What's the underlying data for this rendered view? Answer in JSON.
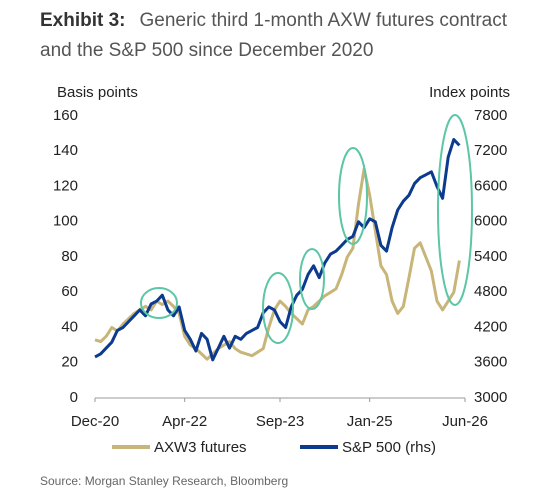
{
  "chart_data": {
    "type": "line",
    "title_label": "Exhibit 3:",
    "title": "Generic third 1-month AXW futures contract and the S&P 500 since December 2020",
    "y_label": "Basis points",
    "y2_label": "Index points",
    "source": "Source: Morgan Stanley Research, Bloomberg",
    "x": [
      "2020-12",
      "2021-01",
      "2021-02",
      "2021-03",
      "2021-04",
      "2021-05",
      "2021-06",
      "2021-07",
      "2021-08",
      "2021-09",
      "2021-10",
      "2021-11",
      "2021-12",
      "2022-01",
      "2022-02",
      "2022-03",
      "2022-04",
      "2022-05",
      "2022-06",
      "2022-07",
      "2022-08",
      "2022-09",
      "2022-10",
      "2022-11",
      "2022-12",
      "2023-01",
      "2023-02",
      "2023-03",
      "2023-04",
      "2023-05",
      "2023-06",
      "2023-07",
      "2023-08",
      "2023-09",
      "2023-10",
      "2023-11",
      "2023-12",
      "2024-01",
      "2024-02",
      "2024-03",
      "2024-04",
      "2024-05",
      "2024-06",
      "2024-07",
      "2024-08",
      "2024-09",
      "2024-10",
      "2024-11",
      "2024-12",
      "2025-01",
      "2025-02",
      "2025-03",
      "2025-04",
      "2025-05",
      "2025-06",
      "2025-07",
      "2025-08",
      "2025-09",
      "2025-10",
      "2025-11",
      "2025-12",
      "2026-01",
      "2026-02",
      "2026-03",
      "2026-04",
      "2026-05",
      "2026-06"
    ],
    "series": [
      {
        "name": "AXW3 futures",
        "color": "#c8b579",
        "axis": "y",
        "values": [
          33,
          32,
          35,
          40,
          38,
          42,
          45,
          48,
          50,
          52,
          50,
          55,
          53,
          55,
          52,
          48,
          35,
          30,
          28,
          25,
          22,
          25,
          28,
          30,
          32,
          28,
          26,
          25,
          24,
          26,
          28,
          40,
          50,
          55,
          52,
          48,
          45,
          42,
          50,
          52,
          55,
          58,
          60,
          62,
          70,
          80,
          85,
          110,
          130,
          115,
          95,
          75,
          70,
          55,
          48,
          52,
          68,
          85,
          88,
          80,
          72,
          55,
          50,
          55,
          60,
          78,
          null
        ]
      },
      {
        "name": "S&P 500 (rhs)",
        "color": "#0b3a8e",
        "axis": "y2",
        "values": [
          3700,
          3750,
          3850,
          3950,
          4150,
          4200,
          4300,
          4400,
          4500,
          4400,
          4600,
          4650,
          4750,
          4500,
          4400,
          4550,
          4150,
          4000,
          3800,
          4100,
          4000,
          3650,
          3850,
          4050,
          3850,
          4050,
          4000,
          4100,
          4150,
          4200,
          4450,
          4550,
          4500,
          4300,
          4200,
          4550,
          4750,
          4850,
          5100,
          5250,
          5050,
          5300,
          5450,
          5500,
          5600,
          5700,
          5750,
          6000,
          5900,
          6050,
          6000,
          5600,
          5500,
          5900,
          6200,
          6350,
          6450,
          6650,
          6750,
          6800,
          6850,
          6600,
          6400,
          7100,
          7400,
          7300,
          null
        ]
      }
    ],
    "xlim": [
      "2020-12",
      "2026-06"
    ],
    "xticks": [
      {
        "value": "2020-12",
        "label": "Dec-20"
      },
      {
        "value": "2022-04",
        "label": "Apr-22"
      },
      {
        "value": "2023-09",
        "label": "Sep-23"
      },
      {
        "value": "2025-01",
        "label": "Jan-25"
      },
      {
        "value": "2026-06",
        "label": "Jun-26"
      }
    ],
    "ylim": [
      0,
      160
    ],
    "yticks": [
      0,
      20,
      40,
      60,
      80,
      100,
      120,
      140,
      160
    ],
    "y2lim": [
      3000,
      7800
    ],
    "y2ticks": [
      3000,
      3600,
      4200,
      4800,
      5400,
      6000,
      6600,
      7200,
      7800
    ],
    "grid": false
  }
}
